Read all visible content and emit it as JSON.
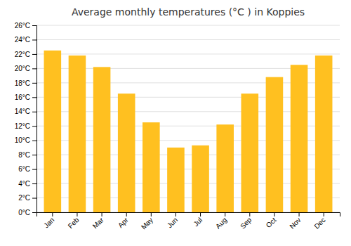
{
  "chart_data": {
    "type": "bar",
    "title": "Average monthly temperatures (°C ) in Koppies",
    "categories": [
      "Jan",
      "Feb",
      "Mar",
      "Apr",
      "May",
      "Jun",
      "Jul",
      "Aug",
      "Sep",
      "Oct",
      "Nov",
      "Dec"
    ],
    "values": [
      22.5,
      21.8,
      20.2,
      16.5,
      12.5,
      9.0,
      9.3,
      12.2,
      16.5,
      18.8,
      20.5,
      21.8
    ],
    "color": "#FFC020",
    "ylim": [
      0,
      26
    ],
    "yticks": [
      {
        "value": 0,
        "label": "0°C"
      },
      {
        "value": 2,
        "label": "2°C"
      },
      {
        "value": 4,
        "label": "4°C"
      },
      {
        "value": 6,
        "label": "6°C"
      },
      {
        "value": 8,
        "label": "8°C"
      },
      {
        "value": 10,
        "label": "10°C"
      },
      {
        "value": 12,
        "label": "12°C"
      },
      {
        "value": 14,
        "label": "14°C"
      },
      {
        "value": 16,
        "label": "16°C"
      },
      {
        "value": 18,
        "label": "18°C"
      },
      {
        "value": 20,
        "label": "20°C"
      },
      {
        "value": 22,
        "label": "22°C"
      },
      {
        "value": 24,
        "label": "24°C"
      },
      {
        "value": 26,
        "label": "26°C"
      }
    ],
    "grid": true
  }
}
